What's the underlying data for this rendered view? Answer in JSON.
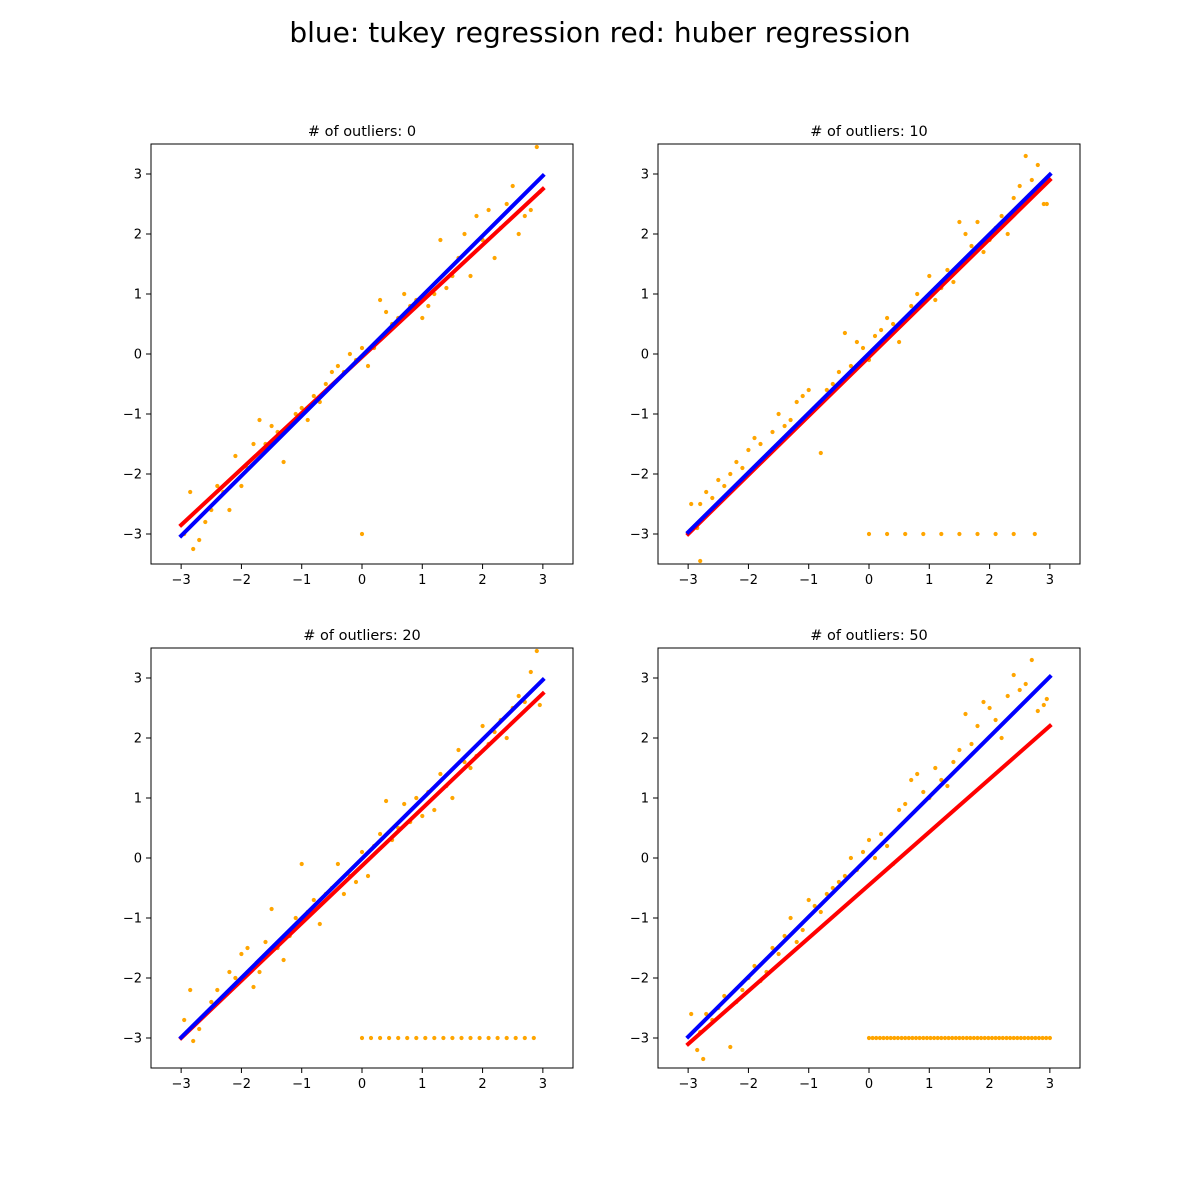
{
  "figure": {
    "title": "blue: tukey regression  red: huber regression"
  },
  "chart_data": [
    {
      "type": "scatter",
      "title": "# of outliers: 0",
      "xlim": [
        -3.5,
        3.5
      ],
      "ylim": [
        -3.5,
        3.5
      ],
      "xticks": [
        -3,
        -2,
        -1,
        0,
        1,
        2,
        3
      ],
      "yticks": [
        -3,
        -2,
        -1,
        0,
        1,
        2,
        3
      ],
      "tick_labels": [
        "−3",
        "−2",
        "−1",
        "0",
        "1",
        "2",
        "3"
      ],
      "grid": false,
      "colors": {
        "points": "#FFA500",
        "tukey": "#0000FF",
        "huber": "#FF0000"
      },
      "series": [
        {
          "type": "scatter",
          "x": [
            -2.95,
            -2.85,
            -2.8,
            -2.7,
            -2.6,
            -2.5,
            -2.4,
            -2.3,
            -2.2,
            -2.1,
            -2.0,
            -1.9,
            -1.8,
            -1.7,
            -1.6,
            -1.5,
            -1.4,
            -1.3,
            -1.2,
            -1.1,
            -1.0,
            -0.9,
            -0.8,
            -0.7,
            -0.6,
            -0.5,
            -0.4,
            -0.3,
            -0.2,
            -0.1,
            0.0,
            0.1,
            0.2,
            0.3,
            0.4,
            0.5,
            0.6,
            0.7,
            0.8,
            0.9,
            1.0,
            1.1,
            1.2,
            1.3,
            1.4,
            1.5,
            1.6,
            1.7,
            1.8,
            1.9,
            2.0,
            2.1,
            2.2,
            2.3,
            2.4,
            2.5,
            2.6,
            2.7,
            2.8,
            2.9,
            2.95,
            0.0
          ],
          "y": [
            -3.0,
            -2.3,
            -3.25,
            -3.1,
            -2.8,
            -2.6,
            -2.2,
            -2.3,
            -2.6,
            -1.7,
            -2.2,
            -1.9,
            -1.5,
            -1.1,
            -1.5,
            -1.2,
            -1.3,
            -1.8,
            -1.2,
            -1.0,
            -0.9,
            -1.1,
            -0.7,
            -0.8,
            -0.5,
            -0.3,
            -0.2,
            -0.3,
            0.0,
            -0.1,
            0.1,
            -0.2,
            0.1,
            0.9,
            0.7,
            0.5,
            0.6,
            1.0,
            0.8,
            0.9,
            0.6,
            0.8,
            1.0,
            1.9,
            1.1,
            1.3,
            1.6,
            2.0,
            1.3,
            2.3,
            1.9,
            2.4,
            1.6,
            2.1,
            2.5,
            2.8,
            2.0,
            2.3,
            2.4,
            3.45,
            2.7,
            -3.0
          ]
        },
        {
          "type": "line",
          "name": "",
          "x": [
            -3,
            3
          ],
          "y": [
            -3.03,
            2.97
          ],
          "color": "#0000FF"
        },
        {
          "type": "line",
          "name": "",
          "x": [
            -3,
            3
          ],
          "y": [
            -2.85,
            2.75
          ],
          "color": "#FF0000"
        }
      ]
    },
    {
      "type": "scatter",
      "title": "# of outliers: 10",
      "xlim": [
        -3.5,
        3.5
      ],
      "ylim": [
        -3.5,
        3.5
      ],
      "xticks": [
        -3,
        -2,
        -1,
        0,
        1,
        2,
        3
      ],
      "yticks": [
        -3,
        -2,
        -1,
        0,
        1,
        2,
        3
      ],
      "tick_labels": [
        "−3",
        "−2",
        "−1",
        "0",
        "1",
        "2",
        "3"
      ],
      "grid": false,
      "colors": {
        "points": "#FFA500",
        "tukey": "#0000FF",
        "huber": "#FF0000"
      },
      "series": [
        {
          "type": "scatter",
          "x": [
            -2.95,
            -2.85,
            -2.8,
            -2.7,
            -2.6,
            -2.5,
            -2.4,
            -2.3,
            -2.2,
            -2.1,
            -2.0,
            -1.9,
            -1.8,
            -1.7,
            -1.6,
            -1.5,
            -1.4,
            -1.3,
            -1.2,
            -1.1,
            -1.0,
            -0.9,
            -0.8,
            -0.7,
            -0.6,
            -0.5,
            -0.4,
            -0.3,
            -0.2,
            -0.1,
            0.0,
            0.1,
            0.2,
            0.3,
            0.4,
            0.5,
            0.6,
            0.7,
            0.8,
            0.9,
            1.0,
            1.1,
            1.2,
            1.3,
            1.4,
            1.5,
            1.6,
            1.7,
            1.8,
            1.9,
            2.0,
            2.1,
            2.2,
            2.3,
            2.4,
            2.5,
            2.6,
            2.7,
            2.8,
            2.9,
            2.95,
            -2.8,
            0.0,
            0.3,
            0.6,
            0.9,
            1.2,
            1.5,
            1.8,
            2.1,
            2.4,
            2.75
          ],
          "y": [
            -2.5,
            -2.9,
            -2.5,
            -2.3,
            -2.4,
            -2.1,
            -2.2,
            -2.0,
            -1.8,
            -1.9,
            -1.6,
            -1.4,
            -1.5,
            -1.7,
            -1.3,
            -1.0,
            -1.2,
            -1.1,
            -0.8,
            -0.7,
            -0.6,
            -0.9,
            -1.65,
            -0.6,
            -0.5,
            -0.3,
            0.35,
            -0.2,
            0.2,
            0.1,
            -0.1,
            0.3,
            0.4,
            0.6,
            0.5,
            0.2,
            0.6,
            0.8,
            1.0,
            0.9,
            1.3,
            0.9,
            1.1,
            1.4,
            1.2,
            2.2,
            2.0,
            1.8,
            2.2,
            1.7,
            1.9,
            2.1,
            2.3,
            2.0,
            2.6,
            2.8,
            3.3,
            2.9,
            3.15,
            2.5,
            2.5,
            -3.45,
            -3.0,
            -3.0,
            -3.0,
            -3.0,
            -3.0,
            -3.0,
            -3.0,
            -3.0,
            -3.0,
            -3.0
          ]
        },
        {
          "type": "line",
          "name": "",
          "x": [
            -3,
            3
          ],
          "y": [
            -2.97,
            2.99
          ],
          "color": "#0000FF"
        },
        {
          "type": "line",
          "name": "",
          "x": [
            -3,
            3
          ],
          "y": [
            -3.0,
            2.9
          ],
          "color": "#FF0000"
        }
      ]
    },
    {
      "type": "scatter",
      "title": "# of outliers: 20",
      "xlim": [
        -3.5,
        3.5
      ],
      "ylim": [
        -3.5,
        3.5
      ],
      "xticks": [
        -3,
        -2,
        -1,
        0,
        1,
        2,
        3
      ],
      "yticks": [
        -3,
        -2,
        -1,
        0,
        1,
        2,
        3
      ],
      "tick_labels": [
        "−3",
        "−2",
        "−1",
        "0",
        "1",
        "2",
        "3"
      ],
      "grid": false,
      "colors": {
        "points": "#FFA500",
        "tukey": "#0000FF",
        "huber": "#FF0000"
      },
      "series": [
        {
          "type": "scatter",
          "x": [
            -2.95,
            -2.85,
            -2.8,
            -2.7,
            -2.6,
            -2.5,
            -2.4,
            -2.3,
            -2.2,
            -2.1,
            -2.0,
            -1.9,
            -1.8,
            -1.7,
            -1.6,
            -1.5,
            -1.4,
            -1.3,
            -1.2,
            -1.1,
            -1.0,
            -0.9,
            -0.8,
            -0.7,
            -0.6,
            -0.5,
            -0.4,
            -0.3,
            -0.2,
            -0.1,
            0.0,
            0.1,
            0.2,
            0.3,
            0.4,
            0.5,
            0.6,
            0.7,
            0.8,
            0.9,
            1.0,
            1.1,
            1.2,
            1.3,
            1.4,
            1.5,
            1.6,
            1.7,
            1.8,
            1.9,
            2.0,
            2.1,
            2.2,
            2.3,
            2.4,
            2.5,
            2.6,
            2.7,
            2.8,
            2.9,
            2.95,
            0.0,
            0.15,
            0.3,
            0.45,
            0.6,
            0.75,
            0.9,
            1.05,
            1.2,
            1.35,
            1.5,
            1.65,
            1.8,
            1.95,
            2.1,
            2.25,
            2.4,
            2.55,
            2.7,
            2.85
          ],
          "y": [
            -2.7,
            -2.2,
            -3.05,
            -2.85,
            -2.6,
            -2.4,
            -2.2,
            -2.3,
            -1.9,
            -2.0,
            -1.6,
            -1.5,
            -2.15,
            -1.9,
            -1.4,
            -0.85,
            -1.5,
            -1.7,
            -1.3,
            -1.0,
            -0.1,
            -0.9,
            -0.7,
            -1.1,
            -0.6,
            -0.5,
            -0.1,
            -0.6,
            -0.3,
            -0.4,
            0.1,
            -0.3,
            0.2,
            0.4,
            0.95,
            0.3,
            0.5,
            0.9,
            0.6,
            1.0,
            0.7,
            1.1,
            0.8,
            1.4,
            1.2,
            1.0,
            1.8,
            1.6,
            1.5,
            1.7,
            2.2,
            1.9,
            2.1,
            2.3,
            2.0,
            2.5,
            2.7,
            2.6,
            3.1,
            3.45,
            2.55,
            -3.0,
            -3.0,
            -3.0,
            -3.0,
            -3.0,
            -3.0,
            -3.0,
            -3.0,
            -3.0,
            -3.0,
            -3.0,
            -3.0,
            -3.0,
            -3.0,
            -3.0,
            -3.0,
            -3.0,
            -3.0,
            -3.0,
            -3.0
          ]
        },
        {
          "type": "line",
          "name": "",
          "x": [
            -3,
            3
          ],
          "y": [
            -2.99,
            2.97
          ],
          "color": "#0000FF"
        },
        {
          "type": "line",
          "name": "",
          "x": [
            -3,
            3
          ],
          "y": [
            -3.0,
            2.74
          ],
          "color": "#FF0000"
        }
      ]
    },
    {
      "type": "scatter",
      "title": "# of outliers: 50",
      "xlim": [
        -3.5,
        3.5
      ],
      "ylim": [
        -3.5,
        3.5
      ],
      "xticks": [
        -3,
        -2,
        -1,
        0,
        1,
        2,
        3
      ],
      "yticks": [
        -3,
        -2,
        -1,
        0,
        1,
        2,
        3
      ],
      "tick_labels": [
        "−3",
        "−2",
        "−1",
        "0",
        "1",
        "2",
        "3"
      ],
      "grid": false,
      "colors": {
        "points": "#FFA500",
        "tukey": "#0000FF",
        "huber": "#FF0000"
      },
      "series": [
        {
          "type": "scatter",
          "x": [
            -2.95,
            -2.85,
            -2.8,
            -2.75,
            -2.7,
            -2.6,
            -2.5,
            -2.4,
            -2.3,
            -2.2,
            -2.1,
            -2.0,
            -1.9,
            -1.8,
            -1.7,
            -1.6,
            -1.5,
            -1.4,
            -1.3,
            -1.2,
            -1.1,
            -1.0,
            -0.9,
            -0.8,
            -0.7,
            -0.6,
            -0.5,
            -0.4,
            -0.3,
            -0.2,
            -0.1,
            0.0,
            0.1,
            0.2,
            0.3,
            0.4,
            0.5,
            0.6,
            0.7,
            0.8,
            0.9,
            1.0,
            1.1,
            1.2,
            1.3,
            1.4,
            1.5,
            1.6,
            1.7,
            1.8,
            1.9,
            2.0,
            2.1,
            2.2,
            2.3,
            2.4,
            2.5,
            2.6,
            2.7,
            2.8,
            2.9,
            2.95,
            0.0,
            0.06,
            0.12,
            0.18,
            0.24,
            0.3,
            0.36,
            0.42,
            0.48,
            0.54,
            0.6,
            0.66,
            0.72,
            0.78,
            0.84,
            0.9,
            0.96,
            1.02,
            1.08,
            1.14,
            1.2,
            1.26,
            1.32,
            1.38,
            1.44,
            1.5,
            1.56,
            1.62,
            1.68,
            1.74,
            1.8,
            1.86,
            1.92,
            1.98,
            2.04,
            2.1,
            2.16,
            2.22,
            2.28,
            2.34,
            2.4,
            2.46,
            2.52,
            2.58,
            2.64,
            2.7,
            2.76,
            2.82,
            2.88,
            2.94,
            3.0
          ],
          "y": [
            -2.6,
            -3.2,
            -2.9,
            -3.35,
            -2.6,
            -2.7,
            -2.5,
            -2.3,
            -3.15,
            -2.4,
            -2.2,
            -2.0,
            -1.8,
            -2.05,
            -1.9,
            -1.5,
            -1.6,
            -1.3,
            -1.0,
            -1.4,
            -1.2,
            -0.7,
            -0.8,
            -0.9,
            -0.6,
            -0.5,
            -0.4,
            -0.3,
            0.0,
            -0.2,
            0.1,
            0.3,
            0.0,
            0.4,
            0.2,
            -0.1,
            0.8,
            0.9,
            1.3,
            1.4,
            1.1,
            1.0,
            1.5,
            1.3,
            1.2,
            1.6,
            1.8,
            2.4,
            1.9,
            2.2,
            2.6,
            2.5,
            2.3,
            2.0,
            2.7,
            3.05,
            2.8,
            2.9,
            3.3,
            2.45,
            2.55,
            2.65,
            -3.0,
            -3.0,
            -3.0,
            -3.0,
            -3.0,
            -3.0,
            -3.0,
            -3.0,
            -3.0,
            -3.0,
            -3.0,
            -3.0,
            -3.0,
            -3.0,
            -3.0,
            -3.0,
            -3.0,
            -3.0,
            -3.0,
            -3.0,
            -3.0,
            -3.0,
            -3.0,
            -3.0,
            -3.0,
            -3.0,
            -3.0,
            -3.0,
            -3.0,
            -3.0,
            -3.0,
            -3.0,
            -3.0,
            -3.0,
            -3.0,
            -3.0,
            -3.0,
            -3.0,
            -3.0,
            -3.0,
            -3.0,
            -3.0,
            -3.0,
            -3.0,
            -3.0,
            -3.0,
            -3.0,
            -3.0,
            -3.0,
            -3.0,
            -3.0
          ]
        },
        {
          "type": "line",
          "name": "",
          "x": [
            -3,
            3
          ],
          "y": [
            -2.98,
            3.02
          ],
          "color": "#0000FF"
        },
        {
          "type": "line",
          "name": "",
          "x": [
            -3,
            3
          ],
          "y": [
            -3.1,
            2.2
          ],
          "color": "#FF0000"
        }
      ]
    }
  ]
}
